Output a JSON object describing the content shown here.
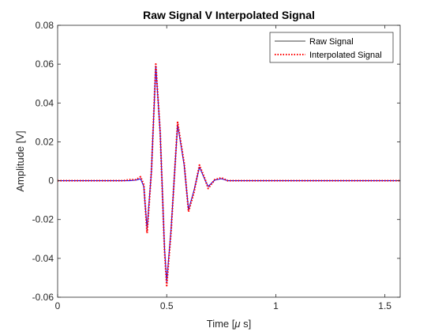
{
  "chart_data": {
    "type": "line",
    "title": "Raw Signal V Interpolated Signal",
    "xlabel": "Time [",
    "xlabel_mu": "μ",
    "xlabel_tail": " s]",
    "ylabel": "Amplitude [V]",
    "xlim": [
      0,
      1.57
    ],
    "ylim": [
      -0.06,
      0.08
    ],
    "xticks": [
      0,
      0.5,
      1,
      1.5
    ],
    "xtick_labels": [
      "0",
      "0.5",
      "1",
      "1.5"
    ],
    "yticks": [
      -0.06,
      -0.04,
      -0.02,
      0,
      0.02,
      0.04,
      0.06,
      0.08
    ],
    "ytick_labels": [
      "-0.06",
      "-0.04",
      "-0.02",
      "0",
      "0.02",
      "0.04",
      "0.06",
      "0.08"
    ],
    "grid": false,
    "legend_position": "top-right",
    "x": [
      0,
      0.3,
      0.33,
      0.36,
      0.38,
      0.395,
      0.41,
      0.43,
      0.45,
      0.47,
      0.49,
      0.5,
      0.52,
      0.55,
      0.58,
      0.6,
      0.625,
      0.65,
      0.675,
      0.69,
      0.72,
      0.75,
      0.78,
      0.82,
      0.9,
      1.0,
      1.2,
      1.4,
      1.57
    ],
    "series": [
      {
        "name": "Raw Signal",
        "color": "#0000ff",
        "style": "solid",
        "values": [
          0,
          0,
          0,
          0.0003,
          0.001,
          -0.003,
          -0.025,
          0.005,
          0.059,
          0.025,
          -0.035,
          -0.052,
          -0.025,
          0.029,
          0.008,
          -0.015,
          -0.005,
          0.007,
          0.0005,
          -0.003,
          0.0003,
          0.001,
          0,
          0,
          0,
          0,
          0,
          0,
          0
        ]
      },
      {
        "name": "Interpolated Signal",
        "color": "#ff0000",
        "style": "dotted",
        "values": [
          0,
          0,
          0.0005,
          0.0005,
          0.002,
          -0.002,
          -0.027,
          0.005,
          0.06,
          0.025,
          -0.036,
          -0.054,
          -0.026,
          0.03,
          0.009,
          -0.016,
          -0.006,
          0.008,
          0.001,
          -0.004,
          0.0005,
          0.0015,
          0,
          0,
          0,
          0,
          0,
          0,
          0
        ]
      }
    ]
  }
}
